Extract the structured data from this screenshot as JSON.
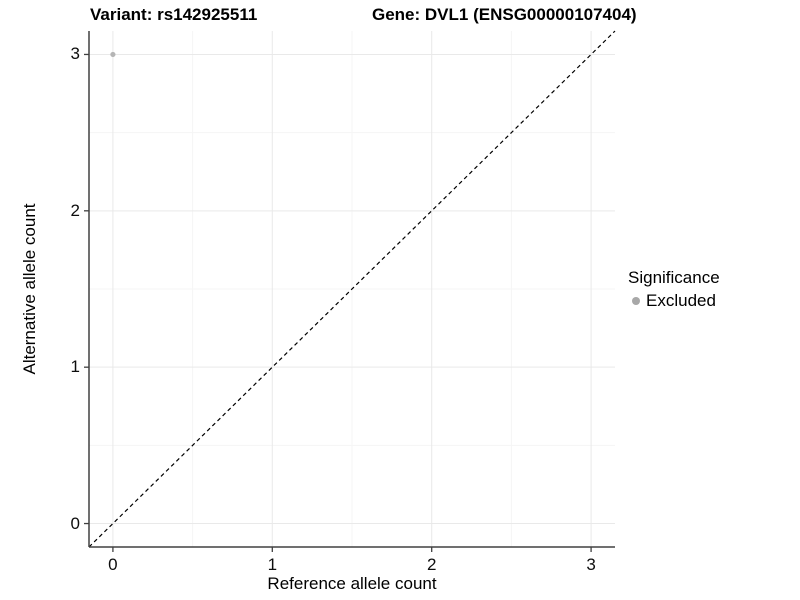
{
  "titles": {
    "variant": "Variant: rs142925511",
    "gene": "Gene: DVL1 (ENSG00000107404)"
  },
  "axes": {
    "x": {
      "label": "Reference allele count",
      "tick_labels": [
        "0",
        "1",
        "2",
        "3"
      ],
      "tick_values": [
        0,
        1,
        2,
        3
      ]
    },
    "y": {
      "label": "Alternative allele count",
      "tick_labels": [
        "0",
        "1",
        "2",
        "3"
      ],
      "tick_values": [
        0,
        1,
        2,
        3
      ]
    }
  },
  "legend": {
    "title": "Significance",
    "entries": [
      {
        "label": "Excluded",
        "color": "#a8a8a8"
      }
    ]
  },
  "colors": {
    "point": "#b5b5b5",
    "grid_major": "#e9e9e9",
    "grid_minor": "#f5f5f5",
    "axis_line": "#404040",
    "tick_mark": "#404040",
    "reference_line": "#000000",
    "background": "#ffffff"
  },
  "chart_data": {
    "type": "scatter",
    "title": "Variant: rs142925511 | Gene: DVL1 (ENSG00000107404)",
    "xlabel": "Reference allele count",
    "ylabel": "Alternative allele count",
    "xlim": [
      -0.15,
      3.15
    ],
    "ylim": [
      -0.15,
      3.15
    ],
    "x_ticks": [
      0,
      1,
      2,
      3
    ],
    "y_ticks": [
      0,
      1,
      2,
      3
    ],
    "grid": {
      "major": [
        0,
        1,
        2,
        3
      ],
      "minor": [
        0.5,
        1.5,
        2.5
      ]
    },
    "series": [
      {
        "name": "Excluded",
        "color": "#b5b5b5",
        "points": [
          {
            "x": 0,
            "y": 3
          }
        ]
      }
    ],
    "reference_line": {
      "kind": "identity",
      "slope": 1,
      "intercept": 0,
      "style": "dashed",
      "color": "#000000"
    },
    "legend_title": "Significance",
    "legend_position": "right"
  }
}
